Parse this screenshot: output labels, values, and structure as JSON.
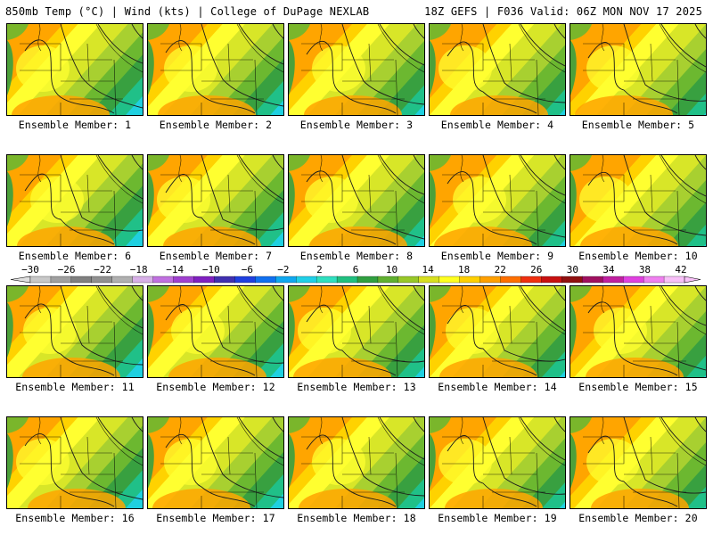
{
  "header": {
    "left_title": "850mb Temp (°C) | Wind (kts) | College of DuPage NEXLAB",
    "right_title": "18Z GEFS | F036 Valid: 06Z MON NOV 17 2025"
  },
  "panels": [
    {
      "label": "Ensemble Member: 1",
      "variant": 0
    },
    {
      "label": "Ensemble Member: 2",
      "variant": 1
    },
    {
      "label": "Ensemble Member: 3",
      "variant": 2
    },
    {
      "label": "Ensemble Member: 4",
      "variant": 3
    },
    {
      "label": "Ensemble Member: 5",
      "variant": 4
    },
    {
      "label": "Ensemble Member: 6",
      "variant": 5
    },
    {
      "label": "Ensemble Member: 7",
      "variant": 6
    },
    {
      "label": "Ensemble Member: 8",
      "variant": 7
    },
    {
      "label": "Ensemble Member: 9",
      "variant": 8
    },
    {
      "label": "Ensemble Member: 10",
      "variant": 9
    },
    {
      "label": "Ensemble Member: 11",
      "variant": 10
    },
    {
      "label": "Ensemble Member: 12",
      "variant": 11
    },
    {
      "label": "Ensemble Member: 13",
      "variant": 12
    },
    {
      "label": "Ensemble Member: 14",
      "variant": 13
    },
    {
      "label": "Ensemble Member: 15",
      "variant": 14
    },
    {
      "label": "Ensemble Member: 16",
      "variant": 15
    },
    {
      "label": "Ensemble Member: 17",
      "variant": 16
    },
    {
      "label": "Ensemble Member: 18",
      "variant": 17
    },
    {
      "label": "Ensemble Member: 19",
      "variant": 18
    },
    {
      "label": "Ensemble Member: 20",
      "variant": 19
    }
  ],
  "colorbar": {
    "labels": [
      "−30",
      "−26",
      "−22",
      "−18",
      "−14",
      "−10",
      "−6",
      "−2",
      "2",
      "6",
      "10",
      "14",
      "18",
      "22",
      "26",
      "30",
      "34",
      "38",
      "42"
    ],
    "colors": [
      "#c8c8c8",
      "#a0a0a0",
      "#808080",
      "#909090",
      "#b0b0b0",
      "#d8b0e8",
      "#c070e0",
      "#a040d0",
      "#8020c0",
      "#4030b0",
      "#2040e0",
      "#1070f0",
      "#10a8f0",
      "#20d0e8",
      "#30e0c0",
      "#20c080",
      "#30a040",
      "#60b030",
      "#98c828",
      "#d8e020",
      "#ffff20",
      "#ffd000",
      "#ffa000",
      "#ff7000",
      "#f03010",
      "#c81010",
      "#901010",
      "#a01060",
      "#c020a0",
      "#e040e0",
      "#f080f0",
      "#f8c0f8"
    ]
  }
}
